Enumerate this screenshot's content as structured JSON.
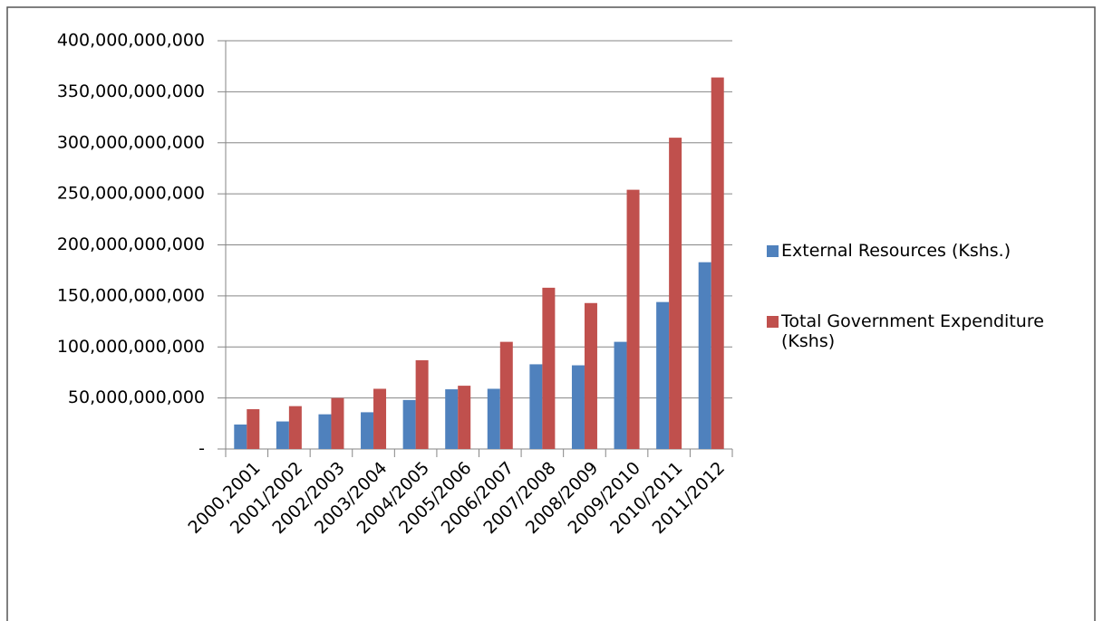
{
  "chart_data": {
    "type": "bar",
    "categories": [
      "2000,2001",
      "2001/2002",
      "2002/2003",
      "2003/2004",
      "2004/2005",
      "2005/2006",
      "2006/2007",
      "2007/2008",
      "2008/2009",
      "2009/2010",
      "2010/2011",
      "2011/2012"
    ],
    "series": [
      {
        "name": "External Resources (Kshs.)",
        "color": "#4f81bd",
        "values": [
          24000000000,
          27000000000,
          34000000000,
          36000000000,
          48000000000,
          58500000000,
          59000000000,
          83000000000,
          82000000000,
          105000000000,
          144000000000,
          183000000000
        ]
      },
      {
        "name": "Total Government Expenditure (Kshs)",
        "color": "#c0504d",
        "values": [
          39000000000,
          42000000000,
          50000000000,
          59000000000,
          87000000000,
          62000000000,
          105000000000,
          158000000000,
          143000000000,
          254000000000,
          305000000000,
          364000000000
        ]
      }
    ],
    "ylim": [
      0,
      400000000000
    ],
    "yticks": [
      {
        "value": 0,
        "label": "-"
      },
      {
        "value": 50000000000,
        "label": "50,000,000,000"
      },
      {
        "value": 100000000000,
        "label": "100,000,000,000"
      },
      {
        "value": 150000000000,
        "label": "150,000,000,000"
      },
      {
        "value": 200000000000,
        "label": "200,000,000,000"
      },
      {
        "value": 250000000000,
        "label": "250,000,000,000"
      },
      {
        "value": 300000000000,
        "label": "300,000,000,000"
      },
      {
        "value": 350000000000,
        "label": "350,000,000,000"
      },
      {
        "value": 400000000000,
        "label": "400,000,000,000"
      }
    ],
    "grid": true,
    "legend": "right"
  }
}
